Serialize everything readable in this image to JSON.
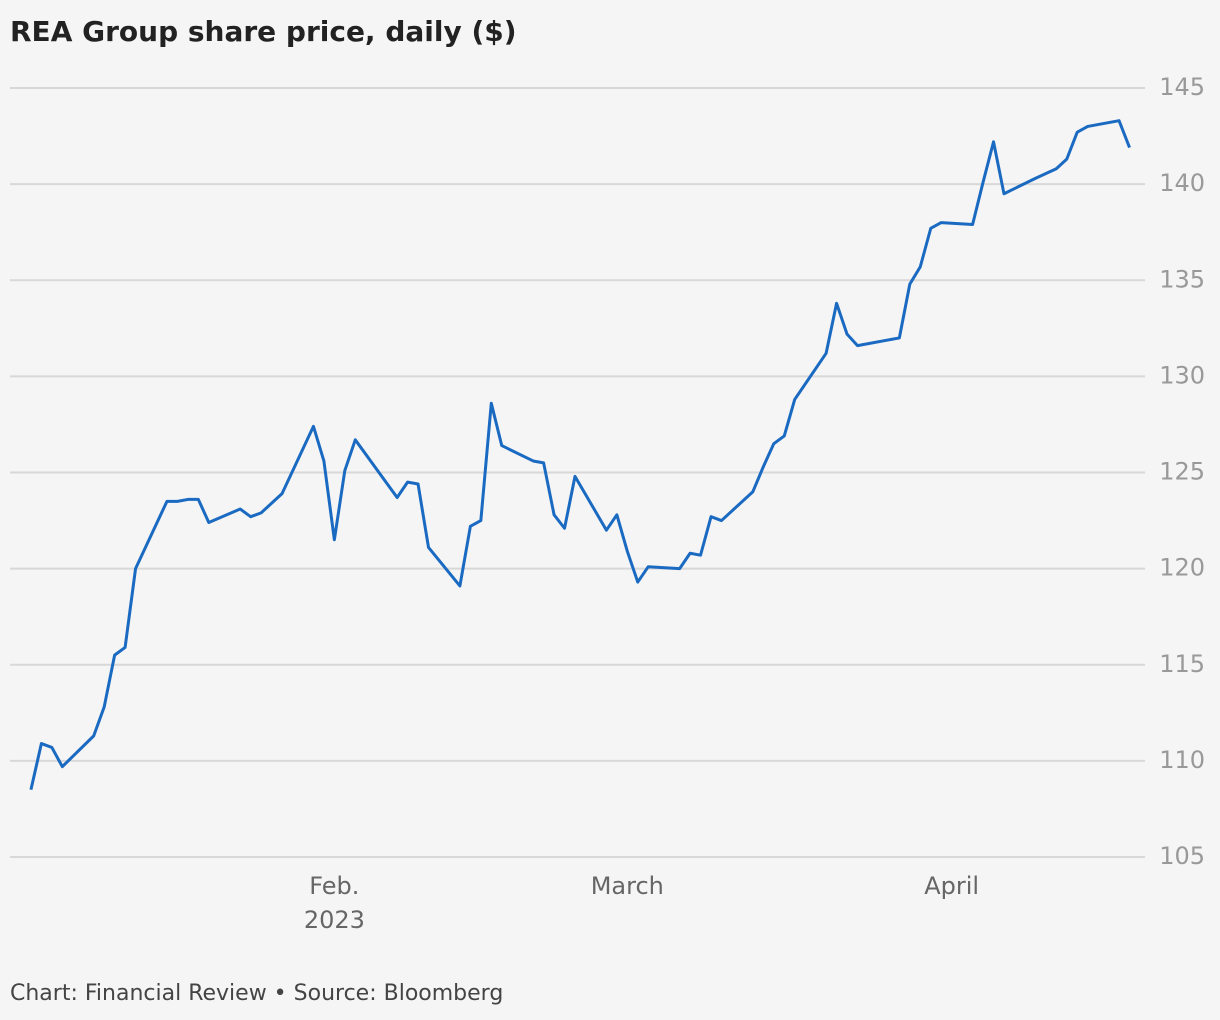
{
  "chart_data": {
    "type": "line",
    "title": "REA Group share price, daily ($)",
    "source": "Chart: Financial Review • Source: Bloomberg",
    "x_year_label": "2023",
    "x": [
      3,
      4,
      5,
      6,
      9,
      10,
      11,
      12,
      13,
      16,
      17,
      18,
      19,
      20,
      23,
      24,
      25,
      27,
      30,
      31,
      32,
      33,
      34,
      38,
      39,
      40,
      41,
      44,
      45,
      46,
      47,
      48,
      51,
      52,
      53,
      54,
      55,
      58,
      59,
      60,
      61,
      62,
      65,
      66,
      67,
      68,
      69,
      72,
      73,
      74,
      75,
      76,
      79,
      80,
      81,
      82,
      86,
      87,
      88,
      89,
      90,
      93,
      94,
      95,
      96,
      99,
      101,
      102,
      103,
      104,
      107,
      108
    ],
    "series": [
      {
        "name": "REA Group",
        "color": "#1a6ac2",
        "values": [
          108.5,
          110.9,
          110.7,
          109.7,
          111.3,
          112.8,
          115.5,
          115.9,
          120.0,
          123.5,
          123.5,
          123.6,
          123.6,
          122.4,
          123.1,
          122.7,
          122.9,
          123.9,
          127.4,
          125.6,
          121.5,
          125.1,
          126.7,
          123.7,
          124.5,
          124.4,
          121.1,
          119.1,
          122.2,
          122.5,
          128.6,
          126.4,
          125.6,
          125.5,
          122.8,
          122.1,
          124.8,
          122.0,
          122.8,
          120.9,
          119.3,
          120.1,
          120.0,
          120.8,
          120.7,
          122.7,
          122.5,
          124.0,
          125.3,
          126.5,
          126.9,
          128.8,
          131.2,
          133.8,
          132.2,
          131.6,
          132.0,
          134.8,
          135.7,
          137.7,
          138.0,
          137.9,
          140.1,
          142.2,
          139.5,
          140.3,
          140.8,
          141.3,
          142.7,
          143.0,
          143.3,
          141.9
        ]
      }
    ],
    "xlim": [
      1,
      109
    ],
    "xticks": [
      {
        "value": 32,
        "label": "Feb."
      },
      {
        "value": 60,
        "label": "March"
      },
      {
        "value": 91,
        "label": "April"
      }
    ],
    "ylim": [
      105,
      145
    ],
    "yticks": [
      105,
      110,
      115,
      120,
      125,
      130,
      135,
      140,
      145
    ],
    "grid": true
  }
}
